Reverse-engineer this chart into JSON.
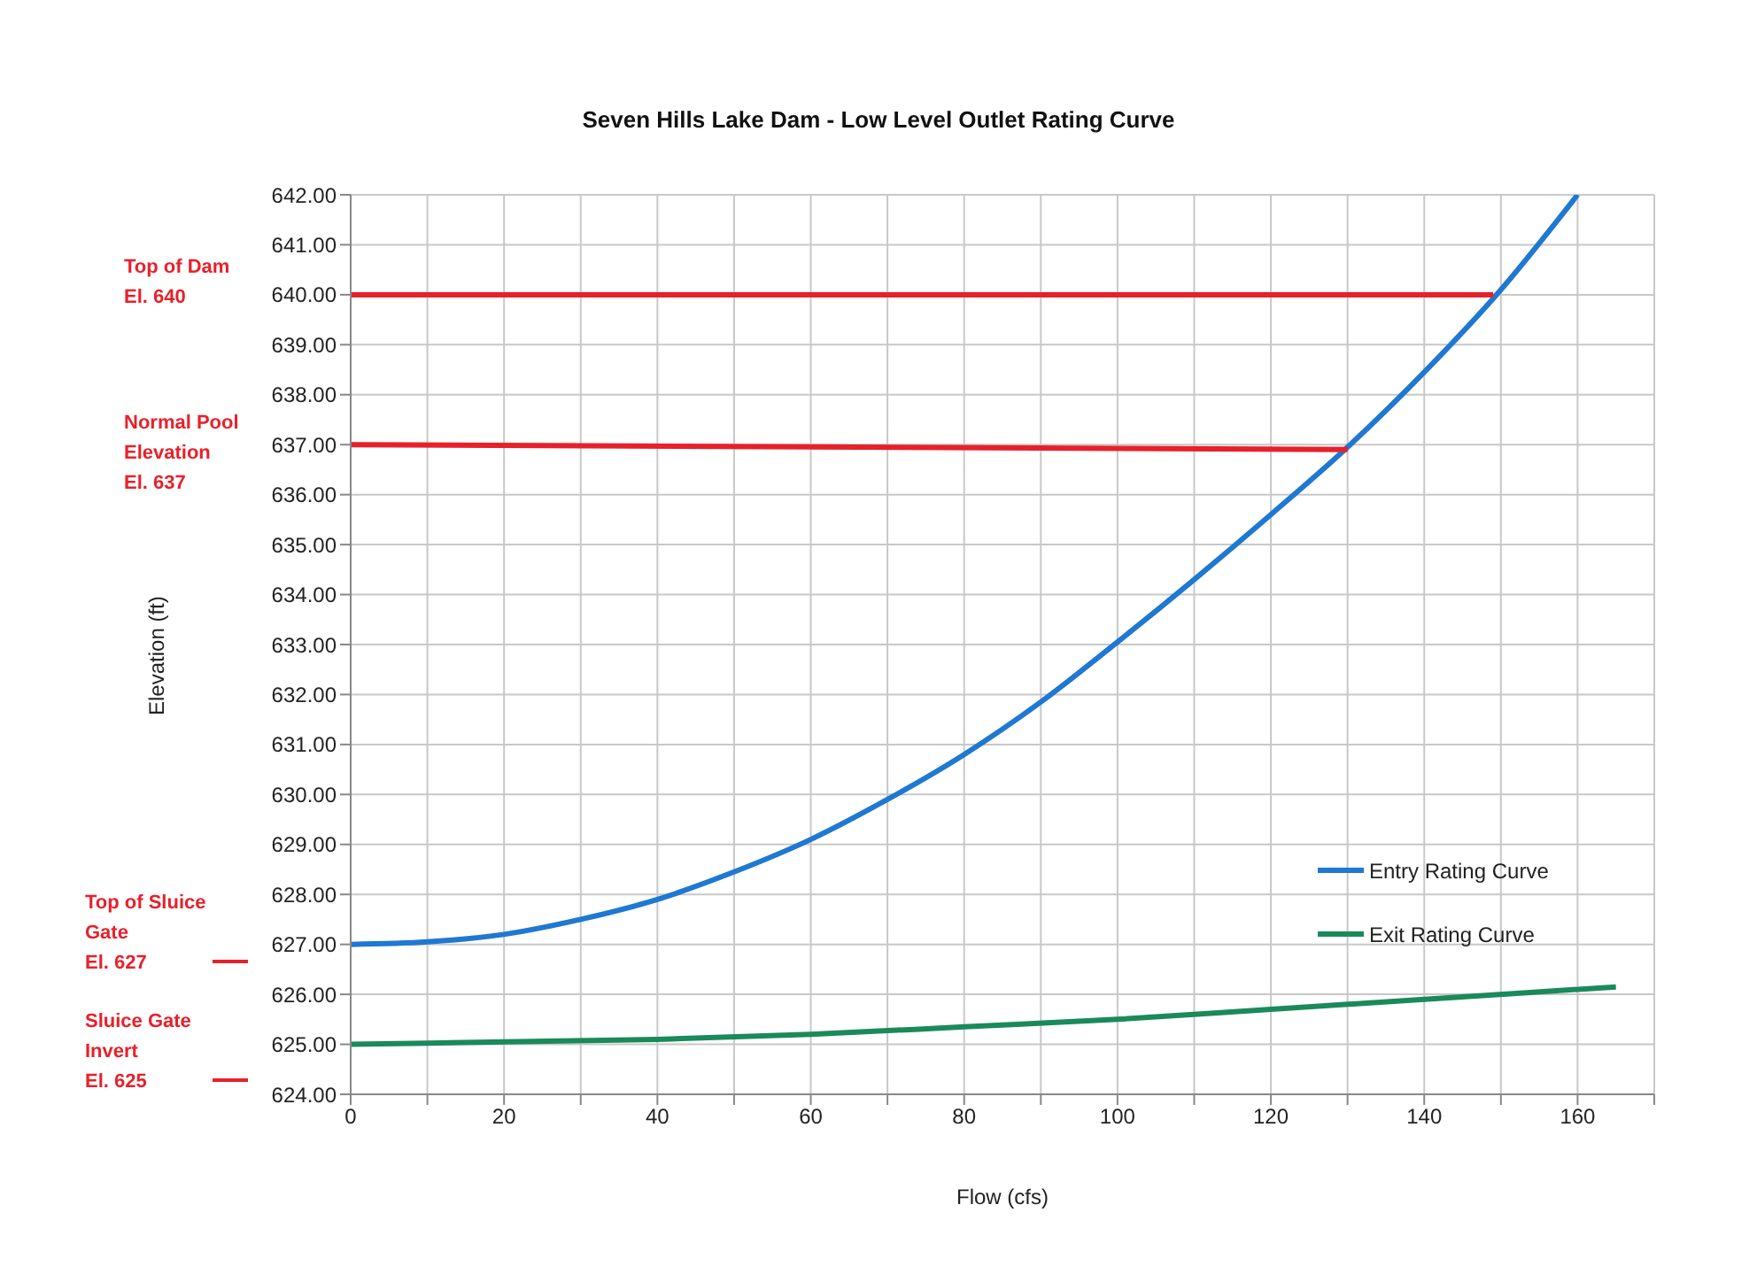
{
  "chart_data": {
    "type": "line",
    "title": "Seven Hills Lake Dam - Low Level Outlet Rating Curve",
    "xlabel": "Flow (cfs)",
    "ylabel": "Elevation (ft)",
    "series": [
      {
        "name": "Entry Rating Curve",
        "color": "#1f78d1",
        "x": [
          0,
          10,
          20,
          30,
          40,
          50,
          60,
          70,
          80,
          90,
          100,
          110,
          120,
          130,
          140,
          150,
          160
        ],
        "values": [
          627,
          627.05,
          627.2,
          627.5,
          627.9,
          628.45,
          629.1,
          629.9,
          630.8,
          631.85,
          633.05,
          634.3,
          635.6,
          636.95,
          638.45,
          640.1,
          642
        ]
      },
      {
        "name": "Exit Rating Curve",
        "color": "#1a8a5a",
        "x": [
          0,
          20,
          40,
          60,
          80,
          100,
          120,
          140,
          165
        ],
        "values": [
          625,
          625.05,
          625.1,
          625.2,
          625.35,
          625.5,
          625.7,
          625.9,
          626.15
        ]
      },
      {
        "color": "#e8202a",
        "x": [
          0,
          149
        ],
        "values": [
          640,
          640
        ]
      },
      {
        "color": "#e8202a",
        "x": [
          0,
          130
        ],
        "values": [
          637,
          636.9
        ]
      }
    ],
    "annotations": [
      "Top of Dam\nEl. 640",
      "Normal Pool\nElevation\nEl. 637",
      "Top of Sluice\nGate\nEl. 627",
      "Sluice Gate\nInvert\nEl. 625"
    ],
    "xlim": [
      0,
      170
    ],
    "xticks": [
      0,
      {
        "value": 10,
        "label": null
      },
      20,
      {
        "value": 30,
        "label": null
      },
      40,
      {
        "value": 50,
        "label": null
      },
      60,
      {
        "value": 70,
        "label": null
      },
      80,
      {
        "value": 90,
        "label": null
      },
      100,
      {
        "value": 110,
        "label": null
      },
      120,
      {
        "value": 130,
        "label": null
      },
      140,
      {
        "value": 150,
        "label": null
      },
      160,
      {
        "value": 170,
        "label": null
      }
    ],
    "ylim": [
      624,
      642
    ],
    "yticks": [
      {
        "value": 624,
        "label": "624.00"
      },
      {
        "value": 625,
        "label": "625.00"
      },
      {
        "value": 626,
        "label": "626.00"
      },
      {
        "value": 627,
        "label": "627.00"
      },
      {
        "value": 628,
        "label": "628.00"
      },
      {
        "value": 629,
        "label": "629.00"
      },
      {
        "value": 630,
        "label": "630.00"
      },
      {
        "value": 631,
        "label": "631.00"
      },
      {
        "value": 632,
        "label": "632.00"
      },
      {
        "value": 633,
        "label": "633.00"
      },
      {
        "value": 634,
        "label": "634.00"
      },
      {
        "value": 635,
        "label": "635.00"
      },
      {
        "value": 636,
        "label": "636.00"
      },
      {
        "value": 637,
        "label": "637.00"
      },
      {
        "value": 638,
        "label": "638.00"
      },
      {
        "value": 639,
        "label": "639.00"
      },
      {
        "value": 640,
        "label": "640.00"
      },
      {
        "value": 641,
        "label": "641.00"
      },
      {
        "value": 642,
        "label": "642.00"
      }
    ],
    "grid": true,
    "legend": "right",
    "marker": "none",
    "line_style": "solid"
  }
}
